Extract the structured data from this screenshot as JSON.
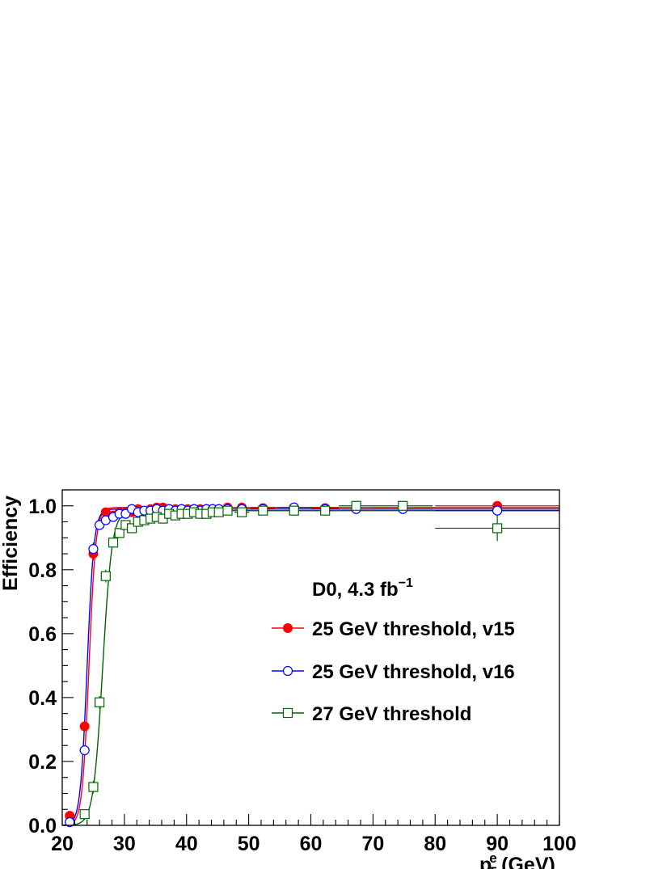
{
  "chart_data": {
    "type": "scatter",
    "title": "",
    "xlabel": "p",
    "xlabel_sub": "T",
    "xlabel_sup": "e",
    "xlabel_unit": "(GeV)",
    "ylabel": "Efficiency",
    "xlim": [
      20,
      100
    ],
    "ylim": [
      0,
      1.05
    ],
    "x_ticks": [
      20,
      30,
      40,
      50,
      60,
      70,
      80,
      90,
      100
    ],
    "x_tick_labels": [
      "20",
      "30",
      "40",
      "50",
      "60",
      "70",
      "80",
      "90",
      "100"
    ],
    "y_ticks": [
      0,
      0.2,
      0.4,
      0.6,
      0.8,
      1.0
    ],
    "y_tick_labels": [
      "0.0",
      "0.2",
      "0.4",
      "0.6",
      "0.8",
      "1.0"
    ],
    "grid": false,
    "legend_position": "center-right",
    "annotation": {
      "text": "D0, 4.3 fb",
      "sup": "−1"
    },
    "series": [
      {
        "name": "25 GeV threshold, v15",
        "color": "#ff0000",
        "marker": "filled-circle",
        "fit": {
          "midpoint": 24.3,
          "width": 0.55,
          "plateau": 0.995
        },
        "points": [
          {
            "x": 21.2,
            "y": 0.03,
            "xerr": 0.7,
            "yerr": 0.01
          },
          {
            "x": 23.6,
            "y": 0.31,
            "xerr": 0.7,
            "yerr": 0.01
          },
          {
            "x": 25.0,
            "y": 0.85,
            "xerr": 0.4,
            "yerr": 0.02
          },
          {
            "x": 26.0,
            "y": 0.94,
            "xerr": 0.4,
            "yerr": 0.01
          },
          {
            "x": 27.0,
            "y": 0.98,
            "xerr": 0.4,
            "yerr": 0.01
          },
          {
            "x": 28.2,
            "y": 0.97,
            "xerr": 0.4,
            "yerr": 0.01
          },
          {
            "x": 29.2,
            "y": 0.98,
            "xerr": 0.4,
            "yerr": 0.01
          },
          {
            "x": 30.2,
            "y": 0.98,
            "xerr": 0.4,
            "yerr": 0.01
          },
          {
            "x": 31.2,
            "y": 0.98,
            "xerr": 0.4,
            "yerr": 0.01
          },
          {
            "x": 32.2,
            "y": 0.99,
            "xerr": 0.4,
            "yerr": 0.01
          },
          {
            "x": 33.2,
            "y": 0.98,
            "xerr": 0.4,
            "yerr": 0.01
          },
          {
            "x": 34.2,
            "y": 0.99,
            "xerr": 0.4,
            "yerr": 0.01
          },
          {
            "x": 35.2,
            "y": 0.995,
            "xerr": 0.4,
            "yerr": 0.01
          },
          {
            "x": 36.2,
            "y": 0.995,
            "xerr": 0.4,
            "yerr": 0.01
          },
          {
            "x": 37.2,
            "y": 0.99,
            "xerr": 0.4,
            "yerr": 0.01
          },
          {
            "x": 38.2,
            "y": 0.99,
            "xerr": 0.4,
            "yerr": 0.01
          },
          {
            "x": 39.2,
            "y": 0.99,
            "xerr": 0.4,
            "yerr": 0.01
          },
          {
            "x": 40.2,
            "y": 0.99,
            "xerr": 0.4,
            "yerr": 0.01
          },
          {
            "x": 41.2,
            "y": 0.99,
            "xerr": 0.4,
            "yerr": 0.01
          },
          {
            "x": 42.2,
            "y": 0.99,
            "xerr": 0.4,
            "yerr": 0.01
          },
          {
            "x": 43.2,
            "y": 0.99,
            "xerr": 0.4,
            "yerr": 0.01
          },
          {
            "x": 44.2,
            "y": 0.99,
            "xerr": 0.4,
            "yerr": 0.01
          },
          {
            "x": 45.2,
            "y": 0.99,
            "xerr": 0.4,
            "yerr": 0.01
          },
          {
            "x": 46.6,
            "y": 0.995,
            "xerr": 0.8,
            "yerr": 0.01
          },
          {
            "x": 48.9,
            "y": 0.995,
            "xerr": 1.2,
            "yerr": 0.01
          },
          {
            "x": 52.3,
            "y": 0.993,
            "xerr": 2.0,
            "yerr": 0.01
          },
          {
            "x": 57.3,
            "y": 0.995,
            "xerr": 2.8,
            "yerr": 0.01
          },
          {
            "x": 62.3,
            "y": 0.993,
            "xerr": 2.2,
            "yerr": 0.01
          },
          {
            "x": 67.3,
            "y": 0.99,
            "xerr": 2.8,
            "yerr": 0.01
          },
          {
            "x": 74.8,
            "y": 0.995,
            "xerr": 4.8,
            "yerr": 0.01
          },
          {
            "x": 90.0,
            "y": 1.0,
            "xerr": 10.0,
            "yerr": 0.01
          }
        ]
      },
      {
        "name": "25 GeV threshold, v16",
        "color": "#0000ff",
        "marker": "open-circle",
        "fit": {
          "midpoint": 24.0,
          "width": 0.55,
          "plateau": 0.99
        },
        "points": [
          {
            "x": 21.2,
            "y": 0.01,
            "xerr": 0.7,
            "yerr": 0.01
          },
          {
            "x": 23.6,
            "y": 0.235,
            "xerr": 0.7,
            "yerr": 0.01
          },
          {
            "x": 25.0,
            "y": 0.865,
            "xerr": 0.4,
            "yerr": 0.02
          },
          {
            "x": 26.0,
            "y": 0.94,
            "xerr": 0.4,
            "yerr": 0.01
          },
          {
            "x": 27.0,
            "y": 0.955,
            "xerr": 0.4,
            "yerr": 0.01
          },
          {
            "x": 28.2,
            "y": 0.965,
            "xerr": 0.4,
            "yerr": 0.01
          },
          {
            "x": 29.2,
            "y": 0.975,
            "xerr": 0.4,
            "yerr": 0.01
          },
          {
            "x": 30.2,
            "y": 0.975,
            "xerr": 0.4,
            "yerr": 0.01
          },
          {
            "x": 31.2,
            "y": 0.99,
            "xerr": 0.4,
            "yerr": 0.01
          },
          {
            "x": 32.2,
            "y": 0.98,
            "xerr": 0.4,
            "yerr": 0.01
          },
          {
            "x": 33.2,
            "y": 0.985,
            "xerr": 0.4,
            "yerr": 0.01
          },
          {
            "x": 34.2,
            "y": 0.985,
            "xerr": 0.4,
            "yerr": 0.01
          },
          {
            "x": 35.2,
            "y": 0.99,
            "xerr": 0.4,
            "yerr": 0.01
          },
          {
            "x": 36.2,
            "y": 0.985,
            "xerr": 0.4,
            "yerr": 0.01
          },
          {
            "x": 37.2,
            "y": 0.99,
            "xerr": 0.4,
            "yerr": 0.01
          },
          {
            "x": 38.2,
            "y": 0.985,
            "xerr": 0.4,
            "yerr": 0.01
          },
          {
            "x": 39.2,
            "y": 0.99,
            "xerr": 0.4,
            "yerr": 0.01
          },
          {
            "x": 40.2,
            "y": 0.985,
            "xerr": 0.4,
            "yerr": 0.01
          },
          {
            "x": 41.2,
            "y": 0.99,
            "xerr": 0.4,
            "yerr": 0.01
          },
          {
            "x": 42.2,
            "y": 0.985,
            "xerr": 0.4,
            "yerr": 0.01
          },
          {
            "x": 43.2,
            "y": 0.99,
            "xerr": 0.4,
            "yerr": 0.01
          },
          {
            "x": 44.2,
            "y": 0.99,
            "xerr": 0.4,
            "yerr": 0.01
          },
          {
            "x": 45.2,
            "y": 0.99,
            "xerr": 0.4,
            "yerr": 0.01
          },
          {
            "x": 46.6,
            "y": 0.99,
            "xerr": 0.8,
            "yerr": 0.01
          },
          {
            "x": 48.9,
            "y": 0.99,
            "xerr": 1.2,
            "yerr": 0.01
          },
          {
            "x": 52.3,
            "y": 0.99,
            "xerr": 2.0,
            "yerr": 0.01
          },
          {
            "x": 57.3,
            "y": 0.995,
            "xerr": 2.8,
            "yerr": 0.01
          },
          {
            "x": 62.3,
            "y": 0.99,
            "xerr": 2.2,
            "yerr": 0.01
          },
          {
            "x": 67.3,
            "y": 0.99,
            "xerr": 2.8,
            "yerr": 0.01
          },
          {
            "x": 74.8,
            "y": 0.99,
            "xerr": 4.8,
            "yerr": 0.01
          },
          {
            "x": 90.0,
            "y": 0.985,
            "xerr": 10.0,
            "yerr": 0.01
          }
        ]
      },
      {
        "name": "27 GeV threshold",
        "color": "#006400",
        "marker": "open-square",
        "fit": {
          "midpoint": 26.5,
          "width": 0.75,
          "plateau": 0.985
        },
        "points": [
          {
            "x": 23.6,
            "y": 0.035,
            "xerr": 0.7,
            "yerr": 0.01
          },
          {
            "x": 25.0,
            "y": 0.12,
            "xerr": 0.4,
            "yerr": 0.02
          },
          {
            "x": 26.0,
            "y": 0.385,
            "xerr": 0.4,
            "yerr": 0.02
          },
          {
            "x": 27.0,
            "y": 0.78,
            "xerr": 0.4,
            "yerr": 0.02
          },
          {
            "x": 28.2,
            "y": 0.885,
            "xerr": 0.4,
            "yerr": 0.01
          },
          {
            "x": 29.2,
            "y": 0.915,
            "xerr": 0.4,
            "yerr": 0.01
          },
          {
            "x": 30.2,
            "y": 0.94,
            "xerr": 0.4,
            "yerr": 0.01
          },
          {
            "x": 31.2,
            "y": 0.93,
            "xerr": 0.4,
            "yerr": 0.01
          },
          {
            "x": 32.2,
            "y": 0.95,
            "xerr": 0.4,
            "yerr": 0.01
          },
          {
            "x": 33.2,
            "y": 0.955,
            "xerr": 0.4,
            "yerr": 0.01
          },
          {
            "x": 34.2,
            "y": 0.96,
            "xerr": 0.4,
            "yerr": 0.01
          },
          {
            "x": 35.2,
            "y": 0.965,
            "xerr": 0.4,
            "yerr": 0.01
          },
          {
            "x": 36.2,
            "y": 0.96,
            "xerr": 0.4,
            "yerr": 0.01
          },
          {
            "x": 37.2,
            "y": 0.975,
            "xerr": 0.4,
            "yerr": 0.01
          },
          {
            "x": 38.2,
            "y": 0.97,
            "xerr": 0.4,
            "yerr": 0.01
          },
          {
            "x": 39.2,
            "y": 0.975,
            "xerr": 0.4,
            "yerr": 0.01
          },
          {
            "x": 40.2,
            "y": 0.975,
            "xerr": 0.4,
            "yerr": 0.01
          },
          {
            "x": 41.2,
            "y": 0.98,
            "xerr": 0.4,
            "yerr": 0.01
          },
          {
            "x": 42.2,
            "y": 0.975,
            "xerr": 0.4,
            "yerr": 0.01
          },
          {
            "x": 43.2,
            "y": 0.975,
            "xerr": 0.4,
            "yerr": 0.01
          },
          {
            "x": 44.2,
            "y": 0.98,
            "xerr": 0.4,
            "yerr": 0.01
          },
          {
            "x": 45.2,
            "y": 0.98,
            "xerr": 0.4,
            "yerr": 0.01
          },
          {
            "x": 46.6,
            "y": 0.985,
            "xerr": 0.8,
            "yerr": 0.01
          },
          {
            "x": 48.9,
            "y": 0.98,
            "xerr": 1.2,
            "yerr": 0.01
          },
          {
            "x": 52.3,
            "y": 0.985,
            "xerr": 2.0,
            "yerr": 0.01
          },
          {
            "x": 57.3,
            "y": 0.985,
            "xerr": 2.8,
            "yerr": 0.01
          },
          {
            "x": 62.3,
            "y": 0.985,
            "xerr": 2.2,
            "yerr": 0.01
          },
          {
            "x": 67.3,
            "y": 1.0,
            "xerr": 2.8,
            "yerr": 0.01
          },
          {
            "x": 74.8,
            "y": 1.0,
            "xerr": 4.8,
            "yerr": 0.01
          },
          {
            "x": 90.0,
            "y": 0.93,
            "xerr": 10.0,
            "yerr": 0.04
          }
        ]
      }
    ]
  }
}
